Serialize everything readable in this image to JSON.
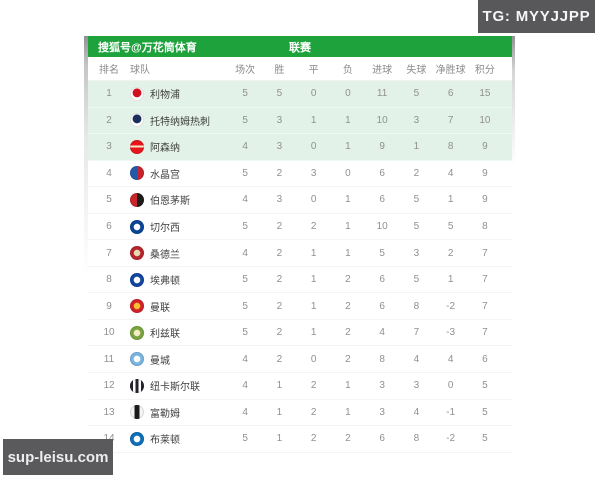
{
  "tg_badge": {
    "label": "TG: MYYJJPP",
    "bg": "#58585a"
  },
  "watermark": {
    "label": "sup-leisu.com",
    "bg": "#5a5a5c"
  },
  "colors": {
    "header_green": "#1ea33c",
    "highlight_green": "#e3f2e8",
    "badge_gray": "#58585a",
    "watermark_gray": "#5a5a5c",
    "header_text": "#8c8c8c",
    "number_text": "#909090",
    "team_text": "#404040"
  },
  "title_bar": {
    "brand": "搜狐号@万花筒体育",
    "title": "联赛"
  },
  "table": {
    "columns": [
      "排名",
      "球队",
      "场次",
      "胜",
      "平",
      "负",
      "进球",
      "失球",
      "净胜球",
      "积分"
    ],
    "highlight_rows": 3,
    "rows": [
      {
        "rank": "1",
        "team": "利物浦",
        "played": "5",
        "win": "5",
        "draw": "0",
        "loss": "0",
        "gf": "11",
        "ga": "5",
        "gd": "6",
        "pts": "15",
        "logo": {
          "shape": "dot",
          "colors": [
            "#ffffff",
            "#d0101f"
          ]
        }
      },
      {
        "rank": "2",
        "team": "托特纳姆热刺",
        "played": "5",
        "win": "3",
        "draw": "1",
        "loss": "1",
        "gf": "10",
        "ga": "3",
        "gd": "7",
        "pts": "10",
        "logo": {
          "shape": "dot",
          "colors": [
            "#ffffff",
            "#1b2e5b"
          ]
        }
      },
      {
        "rank": "3",
        "team": "阿森纳",
        "played": "4",
        "win": "3",
        "draw": "0",
        "loss": "1",
        "gf": "9",
        "ga": "1",
        "gd": "8",
        "pts": "9",
        "logo": {
          "shape": "band",
          "colors": [
            "#e8151c",
            "#f3ead0"
          ]
        }
      },
      {
        "rank": "4",
        "team": "水晶宫",
        "played": "5",
        "win": "2",
        "draw": "3",
        "loss": "0",
        "gf": "6",
        "ga": "2",
        "gd": "4",
        "pts": "9",
        "logo": {
          "shape": "split",
          "colors": [
            "#2458a8",
            "#c8232d"
          ]
        }
      },
      {
        "rank": "5",
        "team": "伯恩茅斯",
        "played": "4",
        "win": "3",
        "draw": "0",
        "loss": "1",
        "gf": "6",
        "ga": "5",
        "gd": "1",
        "pts": "9",
        "logo": {
          "shape": "split",
          "colors": [
            "#c9252b",
            "#1d1d1b"
          ]
        }
      },
      {
        "rank": "6",
        "team": "切尔西",
        "played": "5",
        "win": "2",
        "draw": "2",
        "loss": "1",
        "gf": "10",
        "ga": "5",
        "gd": "5",
        "pts": "8",
        "logo": {
          "shape": "ring",
          "colors": [
            "#0a4595",
            "#ffffff"
          ]
        }
      },
      {
        "rank": "7",
        "team": "桑德兰",
        "played": "4",
        "win": "2",
        "draw": "1",
        "loss": "1",
        "gf": "5",
        "ga": "3",
        "gd": "2",
        "pts": "7",
        "logo": {
          "shape": "ring",
          "colors": [
            "#b5252d",
            "#e8d9b0"
          ]
        }
      },
      {
        "rank": "8",
        "team": "埃弗顿",
        "played": "5",
        "win": "2",
        "draw": "1",
        "loss": "2",
        "gf": "6",
        "ga": "5",
        "gd": "1",
        "pts": "7",
        "logo": {
          "shape": "ring",
          "colors": [
            "#1246a0",
            "#ffffff"
          ]
        }
      },
      {
        "rank": "9",
        "team": "曼联",
        "played": "5",
        "win": "2",
        "draw": "1",
        "loss": "2",
        "gf": "6",
        "ga": "8",
        "gd": "-2",
        "pts": "7",
        "logo": {
          "shape": "ring",
          "colors": [
            "#d2222a",
            "#f7c12f"
          ]
        }
      },
      {
        "rank": "10",
        "team": "利兹联",
        "played": "5",
        "win": "2",
        "draw": "1",
        "loss": "2",
        "gf": "4",
        "ga": "7",
        "gd": "-3",
        "pts": "7",
        "logo": {
          "shape": "ring",
          "colors": [
            "#79a43f",
            "#f3edc8"
          ]
        }
      },
      {
        "rank": "11",
        "team": "曼城",
        "played": "4",
        "win": "2",
        "draw": "0",
        "loss": "2",
        "gf": "8",
        "ga": "4",
        "gd": "4",
        "pts": "6",
        "logo": {
          "shape": "ring",
          "colors": [
            "#79b5e0",
            "#ffffff"
          ]
        }
      },
      {
        "rank": "12",
        "team": "纽卡斯尔联",
        "played": "4",
        "win": "1",
        "draw": "2",
        "loss": "1",
        "gf": "3",
        "ga": "3",
        "gd": "0",
        "pts": "5",
        "logo": {
          "shape": "stripes",
          "colors": [
            "#23232b",
            "#ffffff"
          ]
        }
      },
      {
        "rank": "13",
        "team": "富勒姆",
        "played": "4",
        "win": "1",
        "draw": "2",
        "loss": "1",
        "gf": "3",
        "ga": "4",
        "gd": "-1",
        "pts": "5",
        "logo": {
          "shape": "vband",
          "colors": [
            "#f5f5f5",
            "#1a1a1a"
          ]
        }
      },
      {
        "rank": "14",
        "team": "布莱顿",
        "played": "5",
        "win": "1",
        "draw": "2",
        "loss": "2",
        "gf": "6",
        "ga": "8",
        "gd": "-2",
        "pts": "5",
        "logo": {
          "shape": "ring",
          "colors": [
            "#0f6fb8",
            "#ffffff"
          ]
        }
      }
    ]
  }
}
